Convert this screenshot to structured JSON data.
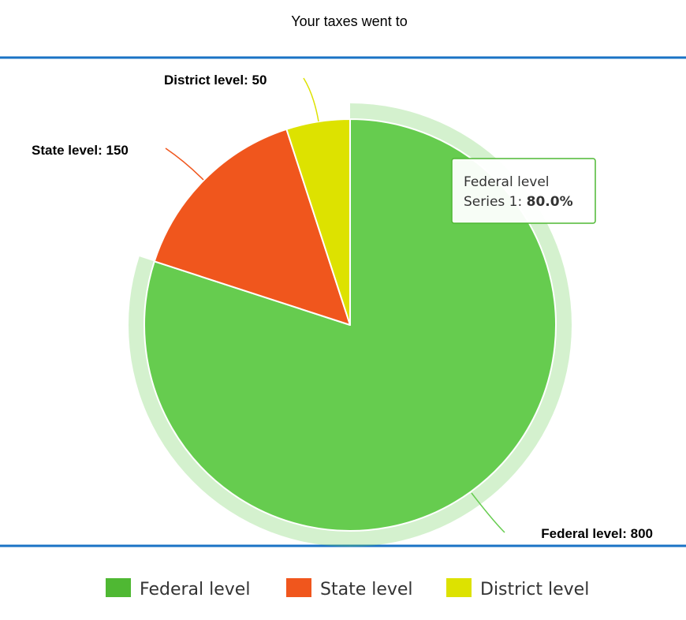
{
  "chart_data": {
    "type": "pie",
    "title": "Your taxes went to",
    "series_name": "Series 1",
    "categories": [
      "Federal level",
      "State level",
      "District level"
    ],
    "values": [
      800,
      150,
      50
    ],
    "colors": [
      "#66cc4f",
      "#f0561d",
      "#dde200"
    ],
    "legend_colors": [
      "#4fb833",
      "#f0561d",
      "#dde200"
    ],
    "data_labels": [
      "Federal level: 800",
      "State level: 150",
      "District level: 50"
    ],
    "legend": {
      "position": "bottom",
      "items": [
        "Federal level",
        "State level",
        "District level"
      ]
    },
    "hovered_slice": "Federal level",
    "tooltip": {
      "title": "Federal level",
      "series_label": "Series 1: ",
      "value": "80.0%"
    },
    "accent_color": "#1a73c5"
  }
}
